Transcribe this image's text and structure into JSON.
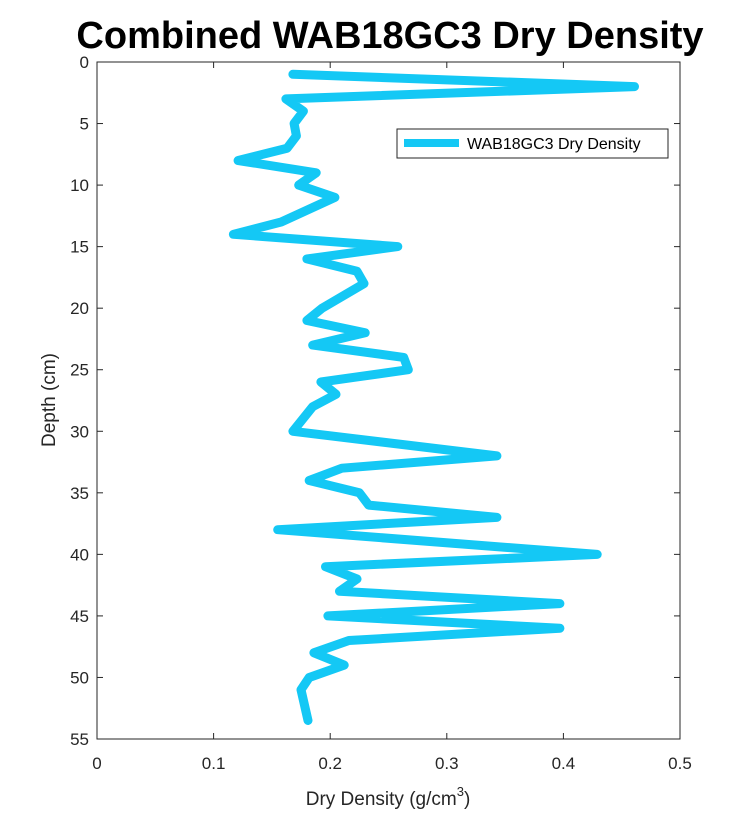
{
  "chart_data": {
    "type": "line",
    "title": "Combined WAB18GC3 Dry Density",
    "xlabel": "Dry Density (g/cm",
    "xlabel_superscript": "3",
    "xlabel_suffix": ")",
    "ylabel": "Depth (cm)",
    "xlim": [
      0,
      0.5
    ],
    "ylim": [
      0,
      55
    ],
    "y_reversed": true,
    "x_ticks": [
      "0",
      "0.1",
      "0.2",
      "0.3",
      "0.4",
      "0.5"
    ],
    "y_ticks": [
      "0",
      "5",
      "10",
      "15",
      "20",
      "25",
      "30",
      "35",
      "40",
      "45",
      "50",
      "55"
    ],
    "grid": false,
    "legend_position": "top-right",
    "series": [
      {
        "name": "WAB18GC3 Dry Density",
        "color": "#14C8F5",
        "x": [
          0.168,
          0.461,
          0.162,
          0.177,
          0.169,
          0.171,
          0.163,
          0.121,
          0.188,
          0.173,
          0.204,
          0.158,
          0.117,
          0.258,
          0.18,
          0.223,
          0.229,
          0.193,
          0.18,
          0.23,
          0.185,
          0.263,
          0.267,
          0.192,
          0.205,
          0.185,
          0.168,
          0.343,
          0.21,
          0.182,
          0.225,
          0.233,
          0.343,
          0.155,
          0.429,
          0.196,
          0.223,
          0.208,
          0.397,
          0.198,
          0.397,
          0.216,
          0.186,
          0.212,
          0.182,
          0.175,
          0.181
        ],
        "y": [
          1,
          2,
          3,
          4,
          5,
          6,
          7,
          8,
          9,
          10,
          11,
          13,
          14,
          15,
          16,
          17,
          18,
          20,
          21,
          22,
          23,
          24,
          25,
          26,
          27,
          28,
          30,
          32,
          33,
          34,
          35,
          36,
          37,
          38,
          40,
          41,
          42,
          43,
          44,
          45,
          46,
          47,
          48,
          49,
          50,
          51,
          53.5
        ]
      }
    ]
  }
}
